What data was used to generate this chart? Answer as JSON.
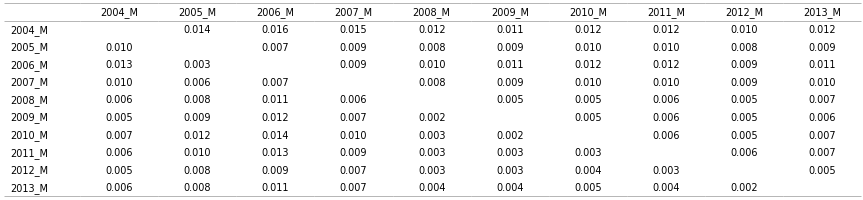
{
  "columns": [
    "",
    "2004_M",
    "2005_M",
    "2006_M",
    "2007_M",
    "2008_M",
    "2009_M",
    "2010_M",
    "2011_M",
    "2012_M",
    "2013_M"
  ],
  "rows": [
    [
      "2004_M",
      "",
      "0.014",
      "0.016",
      "0.015",
      "0.012",
      "0.011",
      "0.012",
      "0.012",
      "0.010",
      "0.012"
    ],
    [
      "2005_M",
      "0.010",
      "",
      "0.007",
      "0.009",
      "0.008",
      "0.009",
      "0.010",
      "0.010",
      "0.008",
      "0.009"
    ],
    [
      "2006_M",
      "0.013",
      "0.003",
      "",
      "0.009",
      "0.010",
      "0.011",
      "0.012",
      "0.012",
      "0.009",
      "0.011"
    ],
    [
      "2007_M",
      "0.010",
      "0.006",
      "0.007",
      "",
      "0.008",
      "0.009",
      "0.010",
      "0.010",
      "0.009",
      "0.010"
    ],
    [
      "2008_M",
      "0.006",
      "0.008",
      "0.011",
      "0.006",
      "",
      "0.005",
      "0.005",
      "0.006",
      "0.005",
      "0.007"
    ],
    [
      "2009_M",
      "0.005",
      "0.009",
      "0.012",
      "0.007",
      "0.002",
      "",
      "0.005",
      "0.006",
      "0.005",
      "0.006"
    ],
    [
      "2010_M",
      "0.007",
      "0.012",
      "0.014",
      "0.010",
      "0.003",
      "0.002",
      "",
      "0.006",
      "0.005",
      "0.007"
    ],
    [
      "2011_M",
      "0.006",
      "0.010",
      "0.013",
      "0.009",
      "0.003",
      "0.003",
      "0.003",
      "",
      "0.006",
      "0.007"
    ],
    [
      "2012_M",
      "0.005",
      "0.008",
      "0.009",
      "0.007",
      "0.003",
      "0.003",
      "0.004",
      "0.003",
      "",
      "0.005"
    ],
    [
      "2013_M",
      "0.006",
      "0.008",
      "0.011",
      "0.007",
      "0.004",
      "0.004",
      "0.005",
      "0.004",
      "0.002",
      ""
    ]
  ],
  "fig_width": 8.63,
  "fig_height": 2.01,
  "dpi": 100,
  "font_size": 7.0,
  "edge_color": "#999999",
  "edge_linewidth": 0.5
}
